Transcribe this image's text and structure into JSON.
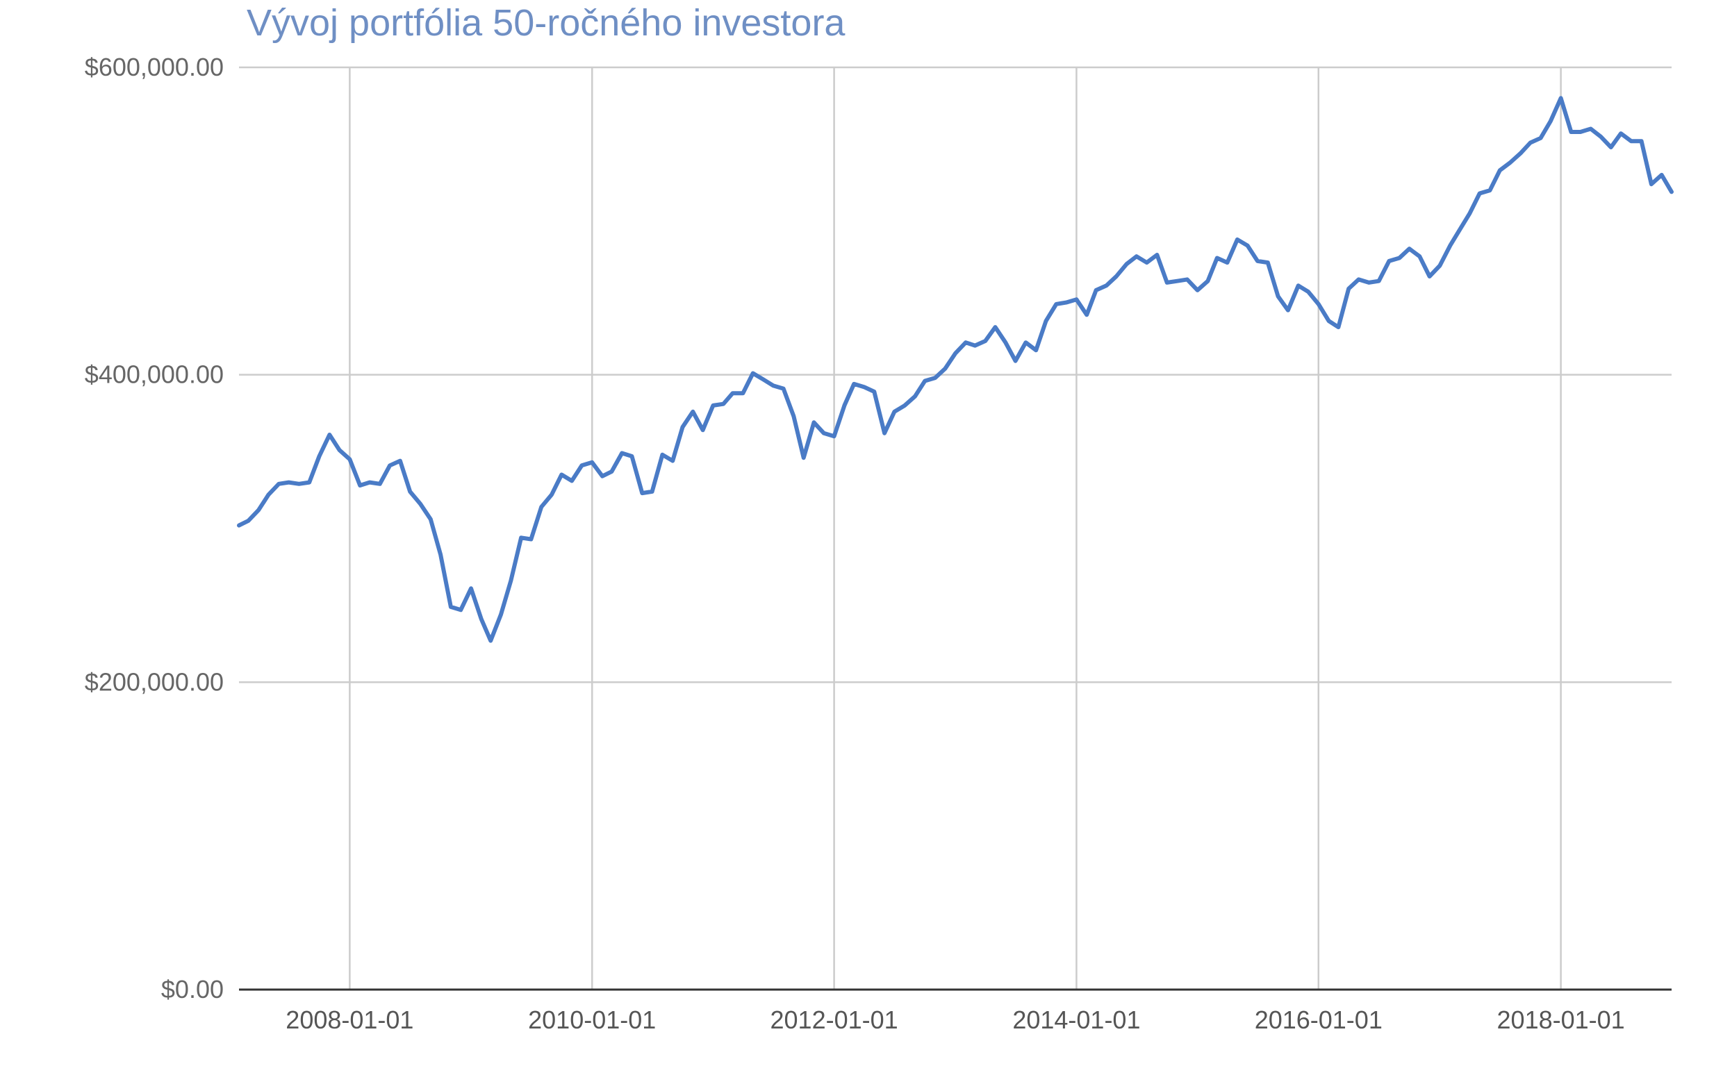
{
  "chart_data": {
    "type": "line",
    "title": "Vývoj portfólia 50-ročného investora",
    "xlabel": "",
    "ylabel": "",
    "ylim": [
      0,
      600000
    ],
    "xlim": [
      "2007-02-01",
      "2018-12-01"
    ],
    "grid": true,
    "legend": "none",
    "line_color": "#4a7bc6",
    "title_color": "#6f8fc4",
    "y_ticks": [
      {
        "value": 0,
        "label": "$0.00"
      },
      {
        "value": 200000,
        "label": "$200,000.00"
      },
      {
        "value": 400000,
        "label": "$400,000.00"
      },
      {
        "value": 600000,
        "label": "$600,000.00"
      }
    ],
    "x_ticks": [
      {
        "date": "2008-01-01",
        "label": "2008-01-01"
      },
      {
        "date": "2010-01-01",
        "label": "2010-01-01"
      },
      {
        "date": "2012-01-01",
        "label": "2012-01-01"
      },
      {
        "date": "2014-01-01",
        "label": "2014-01-01"
      },
      {
        "date": "2016-01-01",
        "label": "2016-01-01"
      },
      {
        "date": "2018-01-01",
        "label": "2018-01-01"
      }
    ],
    "series": [
      {
        "x": [
          "2007-02-01",
          "2007-03-01",
          "2007-04-01",
          "2007-05-01",
          "2007-06-01",
          "2007-07-01",
          "2007-08-01",
          "2007-09-01",
          "2007-10-01",
          "2007-11-01",
          "2007-12-01",
          "2008-01-01",
          "2008-02-01",
          "2008-03-01",
          "2008-04-01",
          "2008-05-01",
          "2008-06-01",
          "2008-07-01",
          "2008-08-01",
          "2008-09-01",
          "2008-10-01",
          "2008-11-01",
          "2008-12-01",
          "2009-01-01",
          "2009-02-01",
          "2009-03-01",
          "2009-04-01",
          "2009-05-01",
          "2009-06-01",
          "2009-07-01",
          "2009-08-01",
          "2009-09-01",
          "2009-10-01",
          "2009-11-01",
          "2009-12-01",
          "2010-01-01",
          "2010-02-01",
          "2010-03-01",
          "2010-04-01",
          "2010-05-01",
          "2010-06-01",
          "2010-07-01",
          "2010-08-01",
          "2010-09-01",
          "2010-10-01",
          "2010-11-01",
          "2010-12-01",
          "2011-01-01",
          "2011-02-01",
          "2011-03-01",
          "2011-04-01",
          "2011-05-01",
          "2011-06-01",
          "2011-07-01",
          "2011-08-01",
          "2011-09-01",
          "2011-10-01",
          "2011-11-01",
          "2011-12-01",
          "2012-01-01",
          "2012-02-01",
          "2012-03-01",
          "2012-04-01",
          "2012-05-01",
          "2012-06-01",
          "2012-07-01",
          "2012-08-01",
          "2012-09-01",
          "2012-10-01",
          "2012-11-01",
          "2012-12-01",
          "2013-01-01",
          "2013-02-01",
          "2013-03-01",
          "2013-04-01",
          "2013-05-01",
          "2013-06-01",
          "2013-07-01",
          "2013-08-01",
          "2013-09-01",
          "2013-10-01",
          "2013-11-01",
          "2013-12-01",
          "2014-01-01",
          "2014-02-01",
          "2014-03-01",
          "2014-04-01",
          "2014-05-01",
          "2014-06-01",
          "2014-07-01",
          "2014-08-01",
          "2014-09-01",
          "2014-10-01",
          "2014-11-01",
          "2014-12-01",
          "2015-01-01",
          "2015-02-01",
          "2015-03-01",
          "2015-04-01",
          "2015-05-01",
          "2015-06-01",
          "2015-07-01",
          "2015-08-01",
          "2015-09-01",
          "2015-10-01",
          "2015-11-01",
          "2015-12-01",
          "2016-01-01",
          "2016-02-01",
          "2016-03-01",
          "2016-04-01",
          "2016-05-01",
          "2016-06-01",
          "2016-07-01",
          "2016-08-01",
          "2016-09-01",
          "2016-10-01",
          "2016-11-01",
          "2016-12-01",
          "2017-01-01",
          "2017-02-01",
          "2017-03-01",
          "2017-04-01",
          "2017-05-01",
          "2017-06-01",
          "2017-07-01",
          "2017-08-01",
          "2017-09-01",
          "2017-10-01",
          "2017-11-01",
          "2017-12-01",
          "2018-01-01",
          "2018-02-01",
          "2018-03-01",
          "2018-04-01",
          "2018-05-01",
          "2018-06-01",
          "2018-07-01",
          "2018-08-01",
          "2018-09-01",
          "2018-10-01",
          "2018-11-01",
          "2018-12-01"
        ],
        "y": [
          302000,
          305000,
          312000,
          322000,
          329000,
          330000,
          329000,
          330000,
          347000,
          361000,
          351000,
          345000,
          328000,
          330000,
          329000,
          341000,
          344000,
          324000,
          316000,
          306000,
          283000,
          249000,
          247000,
          261000,
          241000,
          227000,
          244000,
          266000,
          294000,
          293000,
          314000,
          322000,
          335000,
          331000,
          341000,
          343000,
          334000,
          337000,
          349000,
          347000,
          323000,
          324000,
          348000,
          344000,
          366000,
          376000,
          364000,
          380000,
          381000,
          388000,
          388000,
          401000,
          397000,
          393000,
          391000,
          373000,
          346000,
          369000,
          362000,
          360000,
          380000,
          394000,
          392000,
          389000,
          362000,
          376000,
          380000,
          386000,
          396000,
          398000,
          404000,
          414000,
          421000,
          419000,
          422000,
          431000,
          421000,
          409000,
          421000,
          416000,
          435000,
          446000,
          447000,
          449000,
          439000,
          455000,
          458000,
          464000,
          472000,
          477000,
          473000,
          478000,
          460000,
          461000,
          462000,
          455000,
          461000,
          476000,
          473000,
          488000,
          484000,
          474000,
          473000,
          451000,
          442000,
          458000,
          454000,
          446000,
          435000,
          431000,
          456000,
          462000,
          460000,
          461000,
          474000,
          476000,
          482000,
          477000,
          464000,
          471000,
          484000,
          494000,
          505000,
          518000,
          520000,
          533000,
          538000,
          544000,
          551000,
          554000,
          565000,
          580000,
          558000,
          558000,
          560000,
          555000,
          548000,
          557000,
          552000,
          552000,
          524000,
          530000,
          519000
        ]
      }
    ]
  }
}
